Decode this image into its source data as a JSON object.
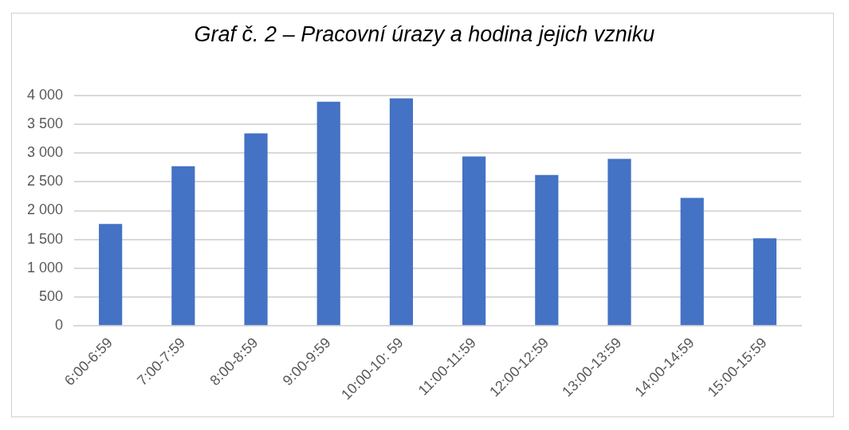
{
  "chart_data": {
    "type": "bar",
    "title": "Graf č. 2 – Pracovní úrazy a hodina jejich vzniku",
    "categories": [
      "6:00-6:59",
      "7:00-7:59",
      "8:00-8:59",
      "9:00-9:59",
      "10:00-10: 59",
      "11:00-11:59",
      "12:00-12:59",
      "13:00-13:59",
      "14:00-14:59",
      "15:00-15:59"
    ],
    "values": [
      1770,
      2770,
      3340,
      3890,
      3950,
      2940,
      2620,
      2900,
      2220,
      1520
    ],
    "color": "#4472c4",
    "ylim": [
      0,
      4000
    ],
    "yticks": [
      0,
      500,
      {
        "value": 1000,
        "label": "1 000"
      },
      {
        "value": 1500,
        "label": "1 500"
      },
      {
        "value": 2000,
        "label": "2 000"
      },
      {
        "value": 2500,
        "label": "2 500"
      },
      {
        "value": 3000,
        "label": "3 000"
      },
      {
        "value": 3500,
        "label": "3 500"
      },
      {
        "value": 4000,
        "label": "4 000"
      }
    ],
    "grid": "y"
  }
}
